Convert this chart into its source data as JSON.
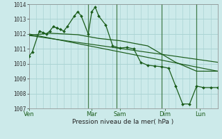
{
  "bg_color": "#cceaea",
  "grid_color": "#aad4d4",
  "line_color": "#1a5c1a",
  "xlabel": "Pression niveau de la mer( hPa )",
  "ylim": [
    1007,
    1014
  ],
  "yticks": [
    1007,
    1008,
    1009,
    1010,
    1011,
    1012,
    1013,
    1014
  ],
  "day_labels": [
    "Ven",
    "Mar",
    "Sam",
    "Dim",
    "Lun"
  ],
  "day_x": [
    0,
    9,
    13,
    19.5,
    24.5
  ],
  "vline_positions": [
    8.5,
    12.5,
    19.0,
    24.0
  ],
  "xlim": [
    0,
    27
  ],
  "series1_x": [
    0,
    0.5,
    1.5,
    2,
    2.5,
    3,
    3.5,
    4,
    4.5,
    5,
    5.5,
    6.5,
    7,
    7.5,
    8.5,
    9,
    9.5,
    10,
    11,
    12,
    13,
    14,
    15,
    16,
    17,
    18,
    19,
    20,
    21,
    22,
    23,
    24,
    25,
    26,
    27
  ],
  "series1_y": [
    1010.5,
    1010.8,
    1012.2,
    1012.1,
    1012.0,
    1012.2,
    1012.5,
    1012.4,
    1012.3,
    1012.2,
    1012.5,
    1013.2,
    1013.5,
    1013.2,
    1012.0,
    1013.5,
    1013.8,
    1013.2,
    1012.6,
    1011.2,
    1011.05,
    1011.1,
    1011.0,
    1010.1,
    1009.9,
    1009.85,
    1009.8,
    1009.7,
    1008.5,
    1007.3,
    1007.3,
    1008.5,
    1008.4,
    1008.4,
    1008.4
  ],
  "series2_x": [
    0,
    3,
    7,
    10,
    13,
    17,
    21,
    24,
    27
  ],
  "series2_y": [
    1011.9,
    1012.05,
    1011.95,
    1011.7,
    1011.55,
    1011.2,
    1010.1,
    1009.5,
    1009.5
  ],
  "series3_x": [
    0,
    27
  ],
  "series3_y": [
    1011.9,
    1010.1
  ],
  "series4_x": [
    0,
    27
  ],
  "series4_y": [
    1012.0,
    1009.5
  ]
}
